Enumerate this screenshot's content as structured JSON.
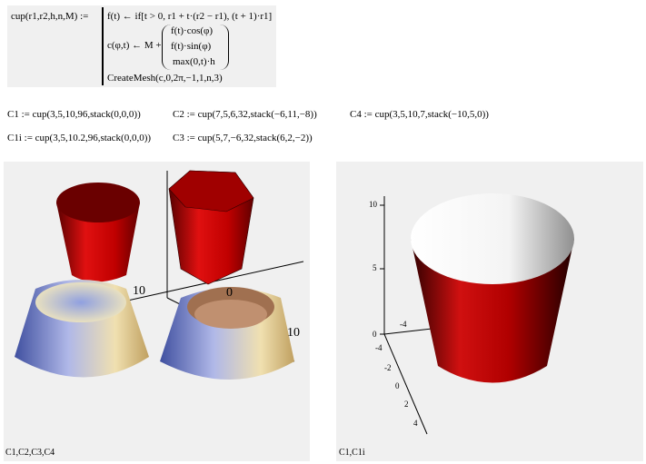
{
  "definition": {
    "lhs": "cup(r1,r2,h,n,M) :=",
    "line1": "f(t) ← if[t > 0, r1 + t·(r2 − r1), (t + 1)·r1]",
    "line2_lhs": "c(φ,t) ← M +",
    "vector": [
      "f(t)·cos(φ)",
      "f(t)·sin(φ)",
      "max(0,t)·h"
    ],
    "line3": "CreateMesh(c,0,2π,−1,1,n,3)"
  },
  "assignments": {
    "c1": "C1 := cup(3,5,10,96,stack(0,0,0))",
    "c2": "C2 := cup(7,5,6,32,stack(−6,11,−8))",
    "c4": "C4 := cup(3,5,10,7,stack(−10,5,0))",
    "c1i": "C1i := cup(3,5,10.2,96,stack(0,0,0))",
    "c3": "C3 := cup(5,7,−6,32,stack(6,2,−2))"
  },
  "plot_left": {
    "label": "C1,C2,C3,C4",
    "axis_labels": [
      "10",
      "0",
      "0",
      "10"
    ]
  },
  "plot_right": {
    "label": "C1,C1i",
    "z_ticks": [
      "10",
      "5",
      "0"
    ],
    "x_ticks": [
      "-4"
    ],
    "y_ticks": [
      "-4",
      "-2",
      "0",
      "2",
      "4"
    ]
  },
  "colors": {
    "cup_red": "#c00000",
    "background": "#f0f0f0"
  }
}
